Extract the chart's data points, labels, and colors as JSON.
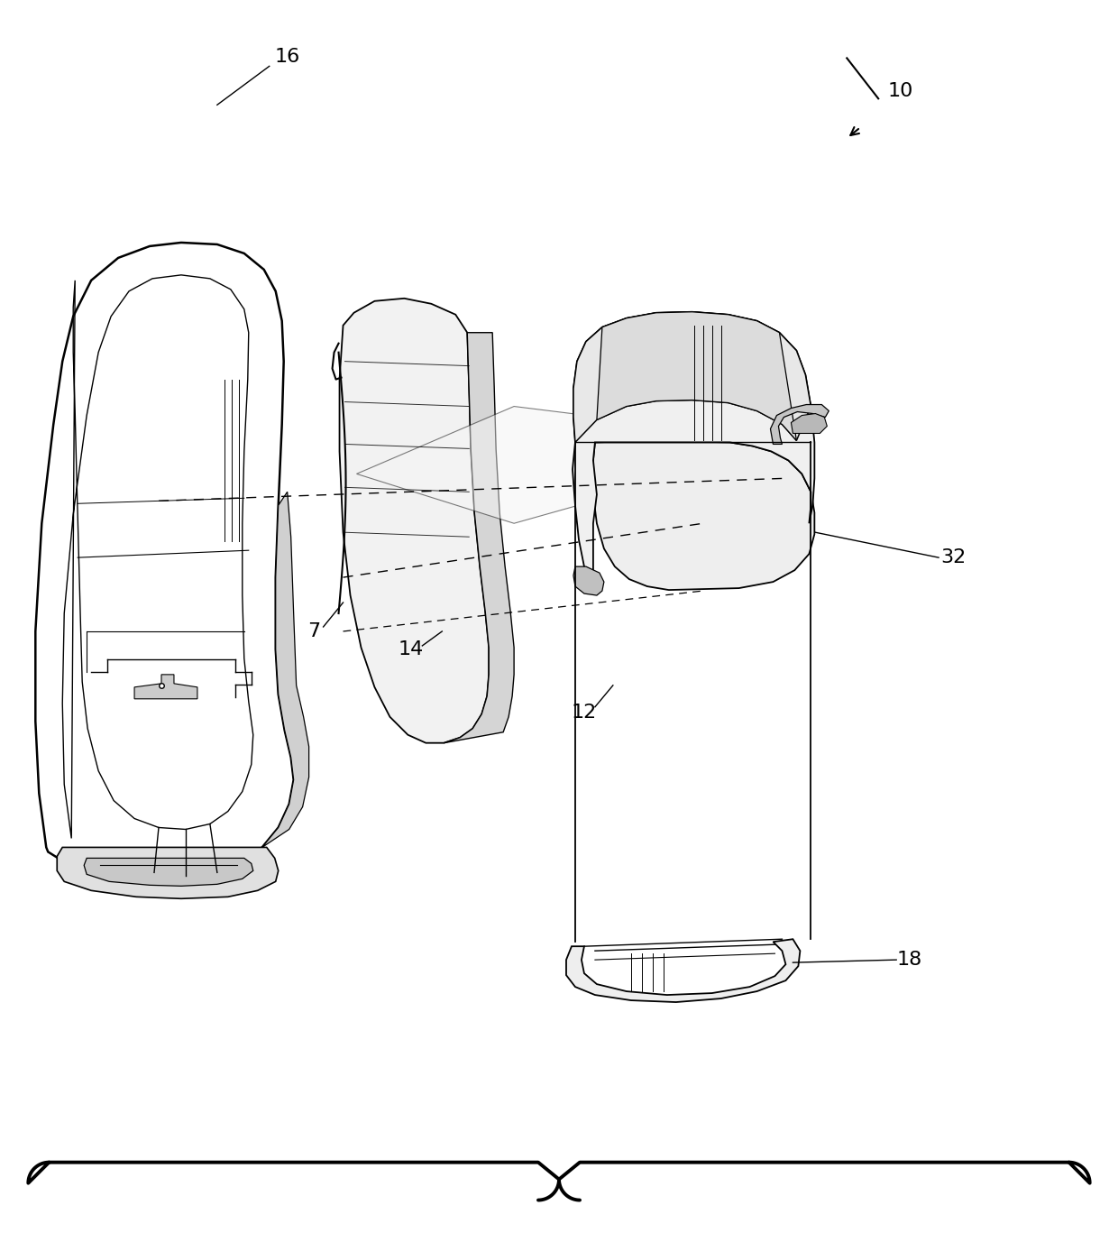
{
  "background_color": "#ffffff",
  "line_color": "#000000",
  "fig_width": 12.4,
  "fig_height": 13.77,
  "dpi": 100
}
